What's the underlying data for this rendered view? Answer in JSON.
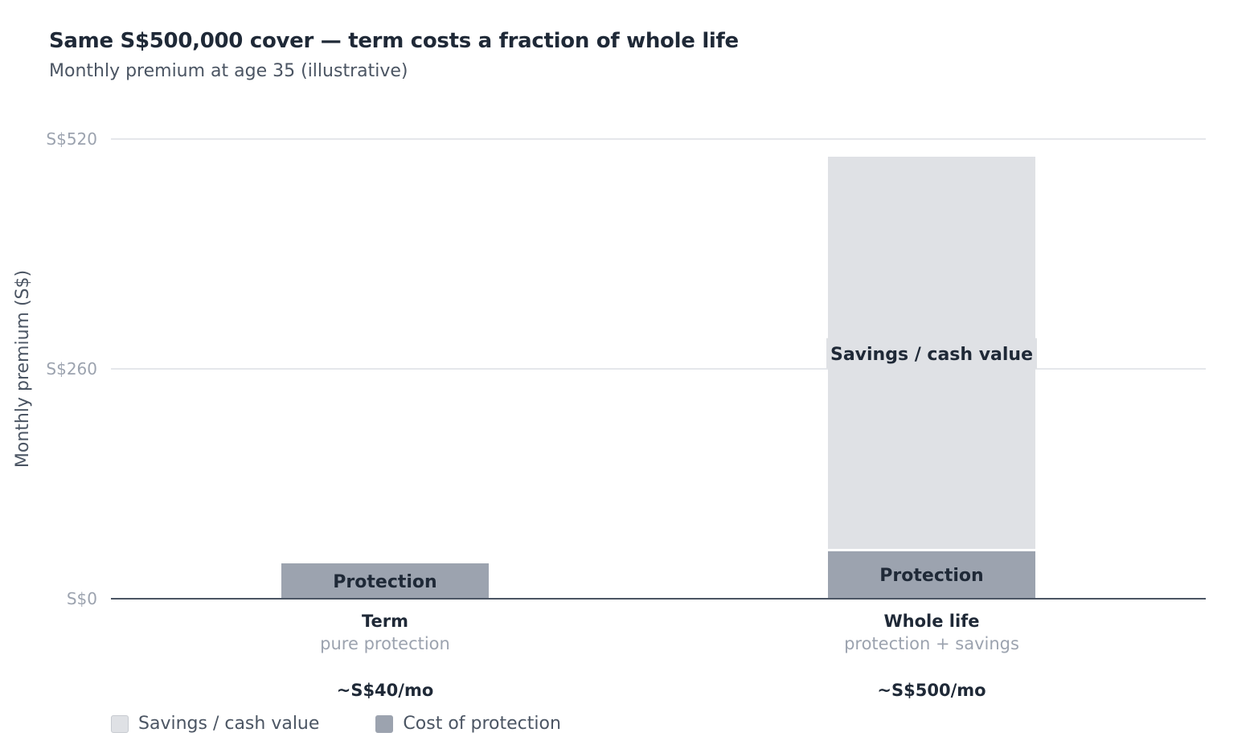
{
  "chart_data": {
    "type": "bar",
    "stacked": true,
    "title": "Same S$500,000 cover — term costs a fraction of whole life",
    "subtitle": "Monthly premium at age 35 (illustrative)",
    "ylabel": "Monthly premium (S$)",
    "xlabel": "",
    "ylim": [
      0,
      520
    ],
    "yticks": [
      {
        "value": 0,
        "label": "S$0"
      },
      {
        "value": 260,
        "label": "S$260"
      },
      {
        "value": 520,
        "label": "S$520"
      }
    ],
    "grid": true,
    "legend_position": "bottom-left",
    "categories": [
      {
        "name": "Term",
        "sub": "pure protection",
        "total_label": "~S$40/mo"
      },
      {
        "name": "Whole life",
        "sub": "protection + savings",
        "total_label": "~S$500/mo"
      }
    ],
    "series": [
      {
        "name": "Cost of protection",
        "label": "Protection",
        "color": "#9ca3af",
        "values": [
          40,
          55
        ]
      },
      {
        "name": "Savings / cash value",
        "label": "Savings / cash value",
        "color": "#dfe1e5",
        "values": [
          0,
          445
        ]
      }
    ],
    "legend": [
      {
        "name": "Savings / cash value",
        "color": "#dfe1e5"
      },
      {
        "name": "Cost of protection",
        "color": "#9ca3af"
      }
    ]
  }
}
